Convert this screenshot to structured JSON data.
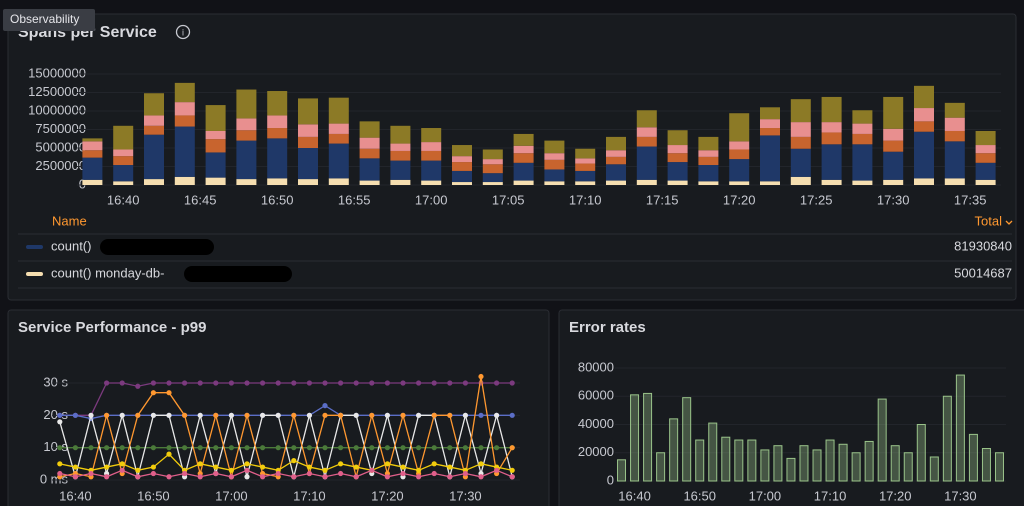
{
  "tooltip": "Observability",
  "chart_data": [
    {
      "type": "bar",
      "stacked": true,
      "title": "Spans per Service",
      "x": [
        "16:38",
        "16:40",
        "16:42",
        "16:44",
        "16:46",
        "16:48",
        "16:50",
        "16:52",
        "16:54",
        "16:56",
        "16:58",
        "17:00",
        "17:02",
        "17:04",
        "17:06",
        "17:08",
        "17:10",
        "17:12",
        "17:14",
        "17:16",
        "17:18",
        "17:20",
        "17:22",
        "17:24",
        "17:26",
        "17:28",
        "17:30",
        "17:32",
        "17:34",
        "17:36"
      ],
      "xlim": [
        "16:37",
        "17:37"
      ],
      "xticks": [
        "16:40",
        "16:45",
        "16:50",
        "16:55",
        "17:00",
        "17:05",
        "17:10",
        "17:15",
        "17:20",
        "17:25",
        "17:30",
        "17:35"
      ],
      "ylim": [
        0,
        15000000
      ],
      "yticks": [
        0,
        2500000,
        5000000,
        7500000,
        10000000,
        12500000,
        15000000
      ],
      "series": [
        {
          "name": "count() monday-db-",
          "color": "#f5deb0",
          "values": [
            700000,
            500000,
            800000,
            1100000,
            1000000,
            800000,
            900000,
            800000,
            900000,
            600000,
            700000,
            600000,
            400000,
            400000,
            600000,
            500000,
            500000,
            600000,
            700000,
            600000,
            500000,
            500000,
            500000,
            1100000,
            700000,
            600000,
            700000,
            900000,
            900000,
            700000
          ]
        },
        {
          "name": "count()",
          "color": "#1f3868",
          "values": [
            3000000,
            2200000,
            6000000,
            6800000,
            3400000,
            5200000,
            5400000,
            4200000,
            4700000,
            3000000,
            2600000,
            2700000,
            1500000,
            1200000,
            2400000,
            1600000,
            1400000,
            2200000,
            4500000,
            2500000,
            2200000,
            3000000,
            6200000,
            3800000,
            4800000,
            4900000,
            3800000,
            6300000,
            5000000,
            2300000
          ]
        },
        {
          "color": "#c8642e",
          "values": [
            1000000,
            1200000,
            1200000,
            1500000,
            1800000,
            1400000,
            1400000,
            1500000,
            1300000,
            1300000,
            1300000,
            1300000,
            1200000,
            1200000,
            1300000,
            1300000,
            1000000,
            1000000,
            1300000,
            1200000,
            1100000,
            1300000,
            1000000,
            1600000,
            1600000,
            1400000,
            1500000,
            1400000,
            1400000,
            1300000
          ]
        },
        {
          "color": "#e88f8f",
          "values": [
            1200000,
            900000,
            1400000,
            1800000,
            1100000,
            1600000,
            1700000,
            1700000,
            1400000,
            1500000,
            1000000,
            1200000,
            800000,
            700000,
            1000000,
            900000,
            700000,
            900000,
            1300000,
            1100000,
            900000,
            1100000,
            1200000,
            2000000,
            1400000,
            1400000,
            1600000,
            1800000,
            1800000,
            1100000
          ]
        },
        {
          "color": "#8c7a26",
          "values": [
            400000,
            3200000,
            3000000,
            2600000,
            3500000,
            3900000,
            3300000,
            3500000,
            3500000,
            2200000,
            2400000,
            1900000,
            1500000,
            1300000,
            1600000,
            1700000,
            1300000,
            1800000,
            2300000,
            2000000,
            1800000,
            3800000,
            1600000,
            3100000,
            3400000,
            1800000,
            4300000,
            3000000,
            2000000,
            1900000
          ]
        }
      ],
      "legend": {
        "header": [
          "Name",
          "Total"
        ],
        "totals": [
          81930840,
          50014687
        ]
      }
    },
    {
      "type": "line",
      "title": "Service Performance - p99",
      "x": [
        "16:38",
        "16:40",
        "16:42",
        "16:44",
        "16:46",
        "16:48",
        "16:50",
        "16:52",
        "16:54",
        "16:56",
        "16:58",
        "17:00",
        "17:02",
        "17:04",
        "17:06",
        "17:08",
        "17:10",
        "17:12",
        "17:14",
        "17:16",
        "17:18",
        "17:20",
        "17:22",
        "17:24",
        "17:26",
        "17:28",
        "17:30",
        "17:32",
        "17:34",
        "17:36"
      ],
      "xlim": [
        "16:37",
        "17:37"
      ],
      "xticks": [
        "16:40",
        "16:50",
        "17:00",
        "17:10",
        "17:20",
        "17:30"
      ],
      "ylim": [
        0,
        30
      ],
      "yticks": [
        {
          "value": 0,
          "label": "0 ms"
        },
        {
          "value": 10,
          "label": "10 s"
        },
        {
          "value": 20,
          "label": "20 s"
        },
        {
          "value": 30,
          "label": "30 s"
        }
      ],
      "series": [
        {
          "color": "#7b3a7e",
          "values": [
            20,
            20,
            20,
            30,
            30,
            29,
            30,
            30,
            30,
            30,
            30,
            30,
            30,
            30,
            30,
            30,
            30,
            30,
            30,
            30,
            30,
            30,
            30,
            30,
            30,
            30,
            30,
            30,
            30,
            30
          ]
        },
        {
          "color": "#5b6ec7",
          "values": [
            20,
            20,
            19,
            20,
            20,
            20,
            20,
            20,
            20,
            20,
            20,
            20,
            20,
            20,
            20,
            20,
            20,
            23,
            20,
            20,
            20,
            20,
            20,
            20,
            20,
            20,
            20,
            20,
            20,
            20
          ]
        },
        {
          "color": "#4b7a3a",
          "values": [
            10,
            10,
            10,
            10,
            10,
            10,
            10,
            10,
            10,
            10,
            10,
            10,
            10,
            10,
            10,
            10,
            10,
            10,
            10,
            10,
            10,
            10,
            10,
            10,
            10,
            10,
            10,
            10,
            10,
            10
          ]
        },
        {
          "color": "#e8e8e8",
          "values": [
            18,
            1,
            20,
            2,
            20,
            1,
            20,
            20,
            1,
            20,
            2,
            20,
            1,
            20,
            20,
            1,
            20,
            1,
            20,
            20,
            2,
            20,
            1,
            20,
            20,
            1,
            20,
            2,
            20,
            1
          ]
        },
        {
          "color": "#ff9830",
          "values": [
            1,
            2,
            1,
            20,
            2,
            20,
            27,
            27,
            20,
            2,
            20,
            1,
            20,
            2,
            1,
            20,
            2,
            20,
            20,
            1,
            20,
            2,
            20,
            2,
            20,
            20,
            1,
            32,
            2,
            10
          ]
        },
        {
          "color": "#f2cc0c",
          "values": [
            5,
            4,
            3,
            4,
            5,
            3,
            4,
            8,
            3,
            5,
            4,
            3,
            5,
            4,
            3,
            6,
            4,
            3,
            5,
            4,
            3,
            5,
            4,
            3,
            5,
            4,
            3,
            5,
            4,
            3
          ]
        },
        {
          "color": "#e05f8a",
          "values": [
            2,
            1,
            2,
            1,
            3,
            1,
            2,
            1,
            2,
            1,
            2,
            1,
            3,
            1,
            2,
            1,
            2,
            1,
            2,
            1,
            3,
            1,
            2,
            1,
            2,
            1,
            2,
            1,
            3,
            1
          ]
        }
      ]
    },
    {
      "type": "bar",
      "title": "Error rates",
      "x": [
        "16:38",
        "16:40",
        "16:42",
        "16:44",
        "16:46",
        "16:48",
        "16:50",
        "16:52",
        "16:54",
        "16:56",
        "16:58",
        "17:00",
        "17:02",
        "17:04",
        "17:06",
        "17:08",
        "17:10",
        "17:12",
        "17:14",
        "17:16",
        "17:18",
        "17:20",
        "17:22",
        "17:24",
        "17:26",
        "17:28",
        "17:30",
        "17:32",
        "17:34",
        "17:36"
      ],
      "xlim": [
        "16:37",
        "17:37"
      ],
      "xticks": [
        "16:40",
        "16:50",
        "17:00",
        "17:10",
        "17:20",
        "17:30"
      ],
      "ylim": [
        0,
        80000
      ],
      "yticks": [
        0,
        20000,
        40000,
        60000,
        80000
      ],
      "series": [
        {
          "color": "#9ac48a",
          "values": [
            15000,
            61000,
            62000,
            20000,
            44000,
            59000,
            29000,
            41000,
            31000,
            29000,
            29000,
            22000,
            25000,
            16000,
            25000,
            22000,
            29000,
            26000,
            20000,
            28000,
            58000,
            25000,
            20000,
            40000,
            17000,
            60000,
            75000,
            33000,
            23000,
            20000
          ]
        }
      ]
    }
  ]
}
